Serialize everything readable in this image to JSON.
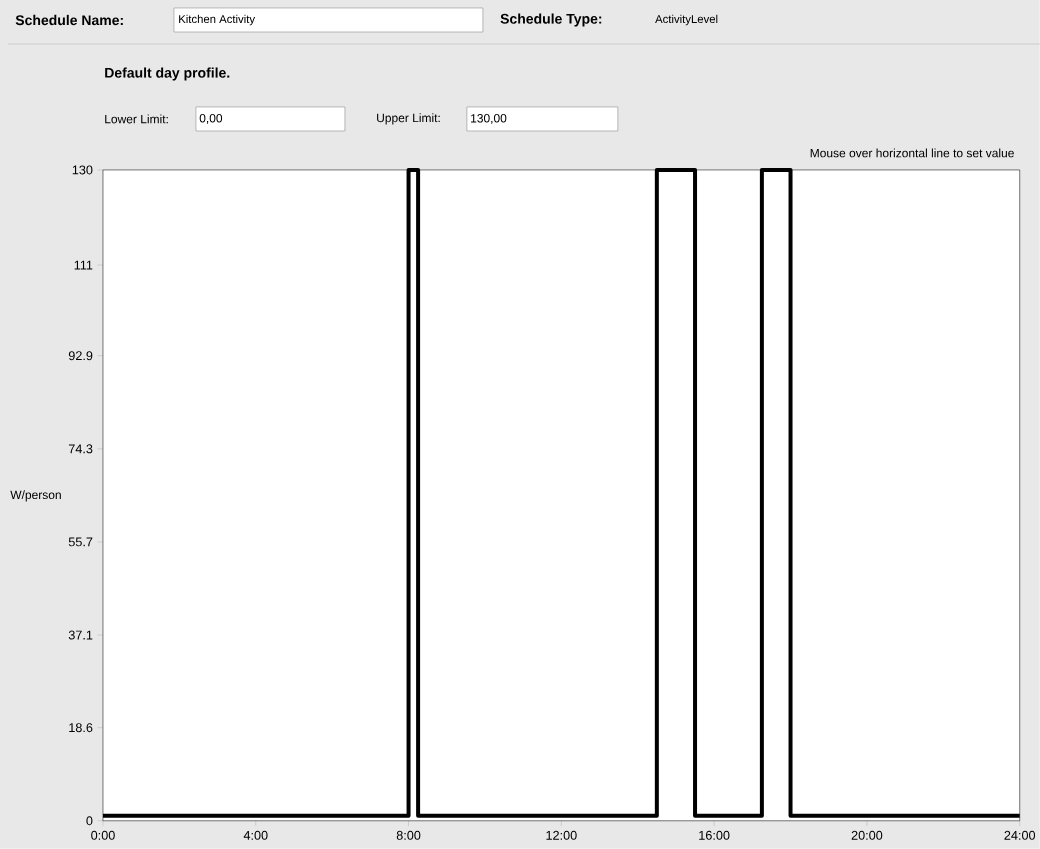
{
  "chart_data": {
    "type": "step",
    "title": "Default day profile.",
    "ylabel": "W/person",
    "annotations": [
      "Schedule Name:",
      "Kitchen Activity",
      "Schedule Type:",
      "ActivityLevel",
      "Lower Limit:",
      "0,00",
      "Upper Limit:",
      "130,00",
      "Mouse over horizontal line to set value"
    ],
    "x": [
      0,
      8,
      8.25,
      14.5,
      15.5,
      17.25,
      18,
      24
    ],
    "series": [
      {
        "color": "#000000",
        "values": [
          1,
          130,
          1,
          130,
          1,
          130,
          1,
          1
        ]
      }
    ],
    "xlim": [
      0,
      24
    ],
    "xticks": [
      {
        "value": 0,
        "label": "0:00"
      },
      {
        "value": 4,
        "label": "4:00"
      },
      {
        "value": 8,
        "label": "8:00"
      },
      {
        "value": 12,
        "label": "12:00"
      },
      {
        "value": 16,
        "label": "16:00"
      },
      {
        "value": 20,
        "label": "20:00"
      },
      {
        "value": 24,
        "label": "24:00"
      }
    ],
    "ylim": [
      0,
      130
    ],
    "yticks": [
      0,
      18.6,
      37.1,
      55.7,
      74.3,
      92.9,
      111,
      130
    ],
    "marker": "none",
    "line_style": "solid"
  }
}
